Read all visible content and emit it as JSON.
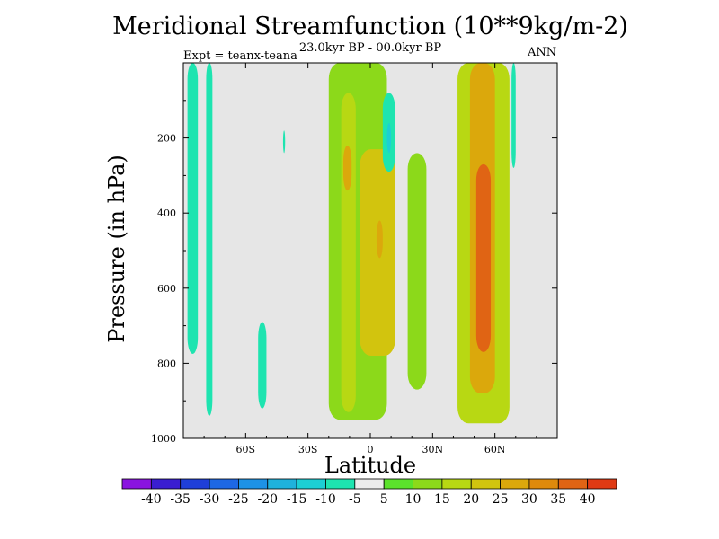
{
  "figure": {
    "title": "Meridional Streamfunction (10**9kg/m-2)",
    "subtitle": "23.0kyr BP - 00.0kyr BP",
    "expt_label": "Expt = teanx-teana",
    "season": "ANN",
    "xlabel": "Latitude",
    "ylabel": "Pressure (in hPa)"
  },
  "chart_data": {
    "type": "contour-filled",
    "title": "Meridional Streamfunction (10**9kg/m-2)",
    "subtitle": "23.0kyr BP - 00.0kyr BP",
    "xlabel": "Latitude",
    "ylabel": "Pressure (in hPa)",
    "xlim": [
      -90,
      90
    ],
    "ylim": [
      1000,
      0
    ],
    "x_ticks": [
      {
        "value": -60,
        "label": "60S"
      },
      {
        "value": -30,
        "label": "30S"
      },
      {
        "value": 0,
        "label": "0"
      },
      {
        "value": 30,
        "label": "30N"
      },
      {
        "value": 60,
        "label": "60N"
      }
    ],
    "y_ticks": [
      {
        "value": 200,
        "label": "200"
      },
      {
        "value": 400,
        "label": "400"
      },
      {
        "value": 600,
        "label": "600"
      },
      {
        "value": 800,
        "label": "800"
      },
      {
        "value": 1000,
        "label": "1000"
      }
    ],
    "background_color": "#e6e6e6",
    "colorbar": {
      "labels": [
        "-40",
        "-35",
        "-30",
        "-25",
        "-20",
        "-15",
        "-10",
        "-5",
        "5",
        "10",
        "15",
        "20",
        "25",
        "30",
        "35",
        "40"
      ],
      "colors": [
        "#8a14e0",
        "#3a1ed2",
        "#1f3fd8",
        "#1e68e4",
        "#1d92e6",
        "#1fb2dc",
        "#1ccfd4",
        "#1ee4b0",
        "#ececec",
        "#5be22c",
        "#8cd91a",
        "#b8d813",
        "#d2c40e",
        "#dba80c",
        "#df8a0c",
        "#e06414",
        "#e03a14"
      ]
    },
    "regions": [
      {
        "name": "sh-polar-cell",
        "level": -10,
        "lat_range": [
          -88,
          -83
        ],
        "p_range": [
          0,
          775
        ]
      },
      {
        "name": "sh-polar-cell-2",
        "level": -10,
        "lat_range": [
          -79,
          -76
        ],
        "p_range": [
          0,
          940
        ]
      },
      {
        "name": "sh-midlat-blob",
        "level": -10,
        "lat_range": [
          -54,
          -50
        ],
        "p_range": [
          690,
          920
        ]
      },
      {
        "name": "sh-small-blob",
        "level": -10,
        "lat_range": [
          -42,
          -41
        ],
        "p_range": [
          180,
          240
        ]
      },
      {
        "name": "sh-subtropical-cell",
        "level": 10,
        "lat_range": [
          -20,
          8
        ],
        "p_range": [
          0,
          950
        ]
      },
      {
        "name": "sh-subtropical-core",
        "level": 15,
        "lat_range": [
          -14,
          -7
        ],
        "p_range": [
          80,
          930
        ]
      },
      {
        "name": "sh-subtropical-max",
        "level": 25,
        "lat_range": [
          -13,
          -9
        ],
        "p_range": [
          220,
          340
        ]
      },
      {
        "name": "tropical-core-low",
        "level": 20,
        "lat_range": [
          -5,
          12
        ],
        "p_range": [
          230,
          780
        ]
      },
      {
        "name": "tropical-max",
        "level": 25,
        "lat_range": [
          3,
          6
        ],
        "p_range": [
          420,
          520
        ]
      },
      {
        "name": "equatorial-neg",
        "level": -10,
        "lat_range": [
          6,
          12
        ],
        "p_range": [
          80,
          290
        ]
      },
      {
        "name": "equatorial-neg-core",
        "level": -15,
        "lat_range": [
          8,
          10
        ],
        "p_range": [
          160,
          240
        ]
      },
      {
        "name": "nh-rising-branch",
        "level": 10,
        "lat_range": [
          18,
          27
        ],
        "p_range": [
          240,
          870
        ]
      },
      {
        "name": "nh-ferrel-cell",
        "level": 15,
        "lat_range": [
          42,
          67
        ],
        "p_range": [
          0,
          960
        ]
      },
      {
        "name": "nh-ferrel-core",
        "level": 25,
        "lat_range": [
          48,
          60
        ],
        "p_range": [
          0,
          880
        ]
      },
      {
        "name": "nh-ferrel-max",
        "level": 35,
        "lat_range": [
          51,
          58
        ],
        "p_range": [
          270,
          770
        ]
      },
      {
        "name": "nh-polar-neg",
        "level": -10,
        "lat_range": [
          68,
          70
        ],
        "p_range": [
          0,
          280
        ]
      }
    ]
  }
}
